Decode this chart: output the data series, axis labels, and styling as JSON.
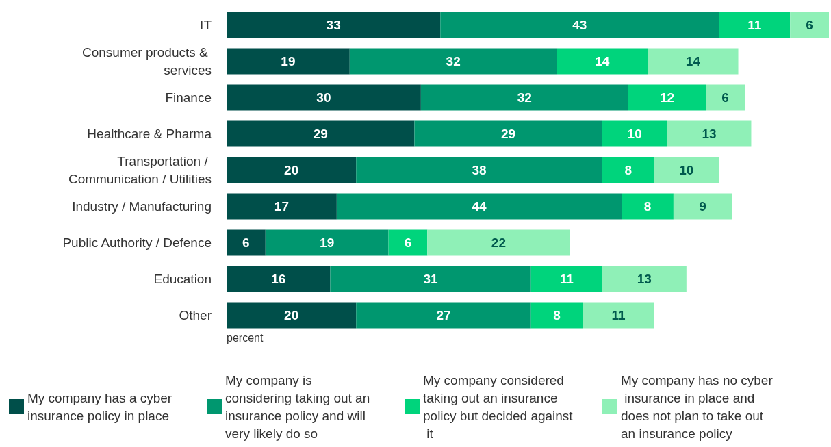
{
  "chart_data": {
    "type": "bar",
    "orientation": "horizontal",
    "stacked": true,
    "xlabel": "percent",
    "data_labels": true,
    "legend": "bottom",
    "categories": [
      "IT",
      "Consumer products & services",
      "Finance",
      "Healthcare & Pharma",
      "Transportation / Communication / Utilities",
      "Industry / Manufacturing",
      "Public Authority / Defence",
      "Education",
      "Other"
    ],
    "series": [
      {
        "name": "My company has a cyber insurance policy in place",
        "color": "#004f4a",
        "values": [
          33,
          19,
          30,
          29,
          20,
          17,
          6,
          16,
          20
        ]
      },
      {
        "name": "My company is considering taking out an insurance policy and will very likely do so",
        "color": "#00976f",
        "values": [
          43,
          32,
          32,
          29,
          38,
          44,
          19,
          31,
          27
        ]
      },
      {
        "name": "My company considered taking out an insurance policy but decided against it",
        "color": "#00d47c",
        "values": [
          11,
          14,
          12,
          10,
          8,
          8,
          6,
          11,
          8
        ]
      },
      {
        "name": "My company has no cyber insurance in place and does not plan to take out an insurance policy",
        "color": "#8ff0b7",
        "values": [
          6,
          14,
          6,
          13,
          10,
          9,
          22,
          13,
          11
        ]
      }
    ]
  }
}
